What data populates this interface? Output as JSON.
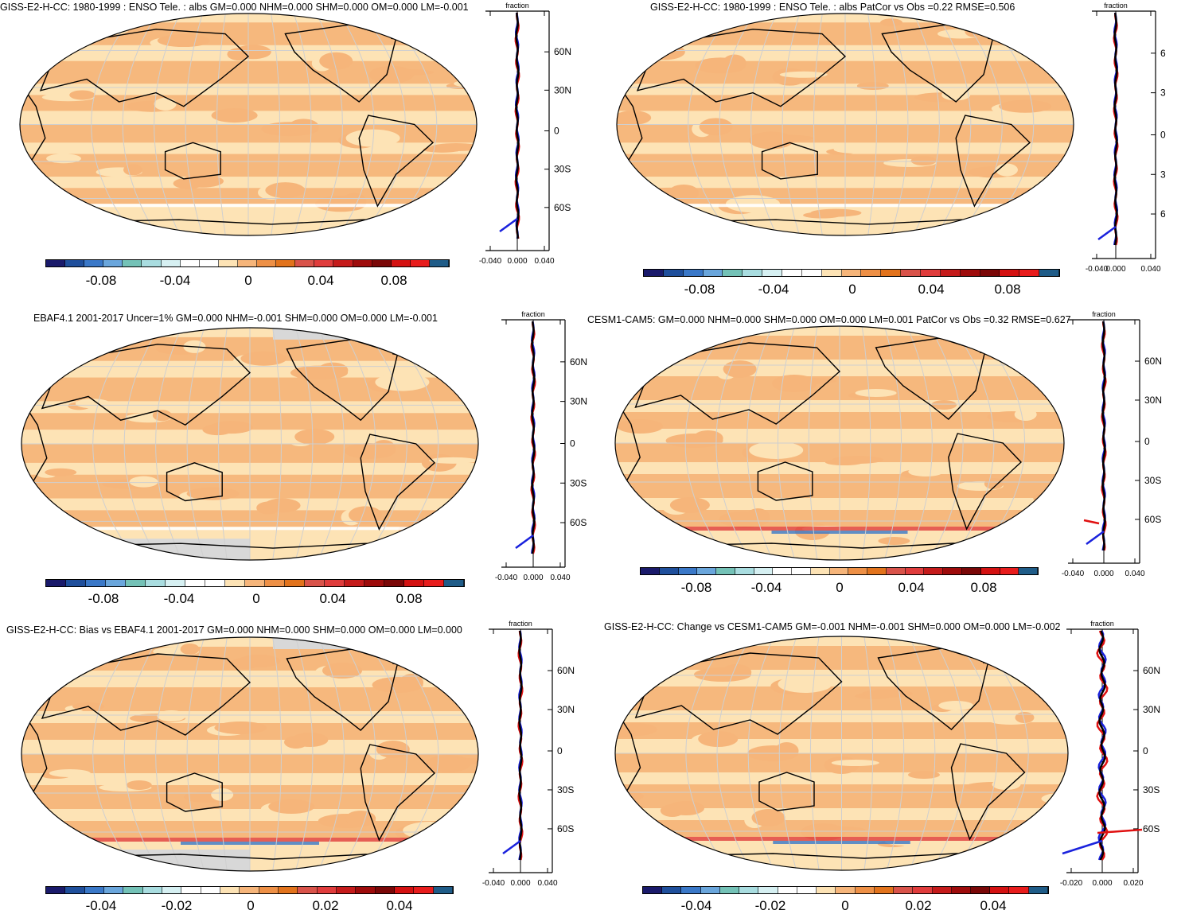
{
  "palettes": {
    "div21": [
      "#1a1a6b",
      "#1f4f9c",
      "#3a78c8",
      "#6aa6dc",
      "#74c2b7",
      "#a9dde0",
      "#d6f0f2",
      "#ffffff",
      "#ffffff",
      "#fde3b5",
      "#f6b57a",
      "#ee9046",
      "#e2731c",
      "#d9534a",
      "#e03c3c",
      "#c51b1b",
      "#9e0b0b",
      "#7a0707",
      "#d41111",
      "#e81c1c",
      "#1f5c88"
    ]
  },
  "colors": {
    "ocean_fill": "#fde3b5",
    "band_fill": "#f6b57a",
    "obs_line": "#e01010",
    "model_line": "#1a22dd",
    "mean_line": "#000000",
    "missing": "#d8d8d8"
  },
  "panels": [
    {
      "id": "p1",
      "title": "GISS-E2-H-CC: 1980-1999 : ENSO Tele. : albs GM=0.000 NHM=0.000 SHM=0.000 OM=0.000 LM=-0.001",
      "cbar_labels": [
        "-0.08",
        "-0.04",
        "0",
        "0.04",
        "0.08"
      ],
      "zonal_xticks": [
        "-0.040",
        "0.000",
        "0.040"
      ],
      "zonal_yticks": [
        "60N",
        "30N",
        "0",
        "30S",
        "60S"
      ],
      "zonal_header": "fraction",
      "missing_land": false
    },
    {
      "id": "p2",
      "title": "GISS-E2-H-CC: 1980-1999 : ENSO Tele. : albs PatCor vs Obs =0.22 RMSE=0.506",
      "cbar_labels": [
        "-0.08",
        "-0.04",
        "0",
        "0.04",
        "0.08"
      ],
      "zonal_xticks": [
        "-0.040",
        "0.000",
        "0.040"
      ],
      "zonal_yticks": [
        "6",
        "3",
        "0",
        "3",
        "6"
      ],
      "zonal_header": "fraction",
      "missing_land": false
    },
    {
      "id": "p3",
      "title": "EBAF4.1 2001-2017 Uncer=1% GM=0.000 NHM=-0.001 SHM=0.000 OM=0.000 LM=-0.001",
      "cbar_labels": [
        "-0.08",
        "-0.04",
        "0",
        "0.04",
        "0.08"
      ],
      "zonal_xticks": [
        "-0.040",
        "0.000",
        "0.040"
      ],
      "zonal_yticks": [
        "60N",
        "30N",
        "0",
        "30S",
        "60S"
      ],
      "zonal_header": "fraction",
      "missing_land": true
    },
    {
      "id": "p4",
      "title": "CESM1-CAM5: GM=0.000 NHM=0.000 SHM=0.000 OM=0.000 LM=0.001 PatCor vs Obs =0.32 RMSE=0.627",
      "cbar_labels": [
        "-0.08",
        "-0.04",
        "0",
        "0.04",
        "0.08"
      ],
      "zonal_xticks": [
        "-0.040",
        "0.000",
        "0.040"
      ],
      "zonal_yticks": [
        "60N",
        "30N",
        "0",
        "30S",
        "60S"
      ],
      "zonal_header": "fraction",
      "missing_land": false
    },
    {
      "id": "p5",
      "title": "GISS-E2-H-CC: Bias vs EBAF4.1 2001-2017 GM=0.000 NHM=0.000 SHM=0.000 OM=0.000 LM=0.000",
      "cbar_labels": [
        "-0.04",
        "-0.02",
        "0",
        "0.02",
        "0.04"
      ],
      "zonal_xticks": [
        "-0.040",
        "0.000",
        "0.040"
      ],
      "zonal_yticks": [
        "60N",
        "30N",
        "0",
        "30S",
        "60S"
      ],
      "zonal_header": "fraction",
      "missing_land": true
    },
    {
      "id": "p6",
      "title": "GISS-E2-H-CC: Change vs CESM1-CAM5 GM=-0.001 NHM=-0.001 SHM=0.000 OM=0.000 LM=-0.002",
      "cbar_labels": [
        "-0.04",
        "-0.02",
        "0",
        "0.02",
        "0.04"
      ],
      "zonal_xticks": [
        "-0.020",
        "0.000",
        "0.020"
      ],
      "zonal_yticks": [
        "60N",
        "30N",
        "0",
        "30S",
        "60S"
      ],
      "zonal_header": "fraction",
      "missing_land": false
    }
  ]
}
